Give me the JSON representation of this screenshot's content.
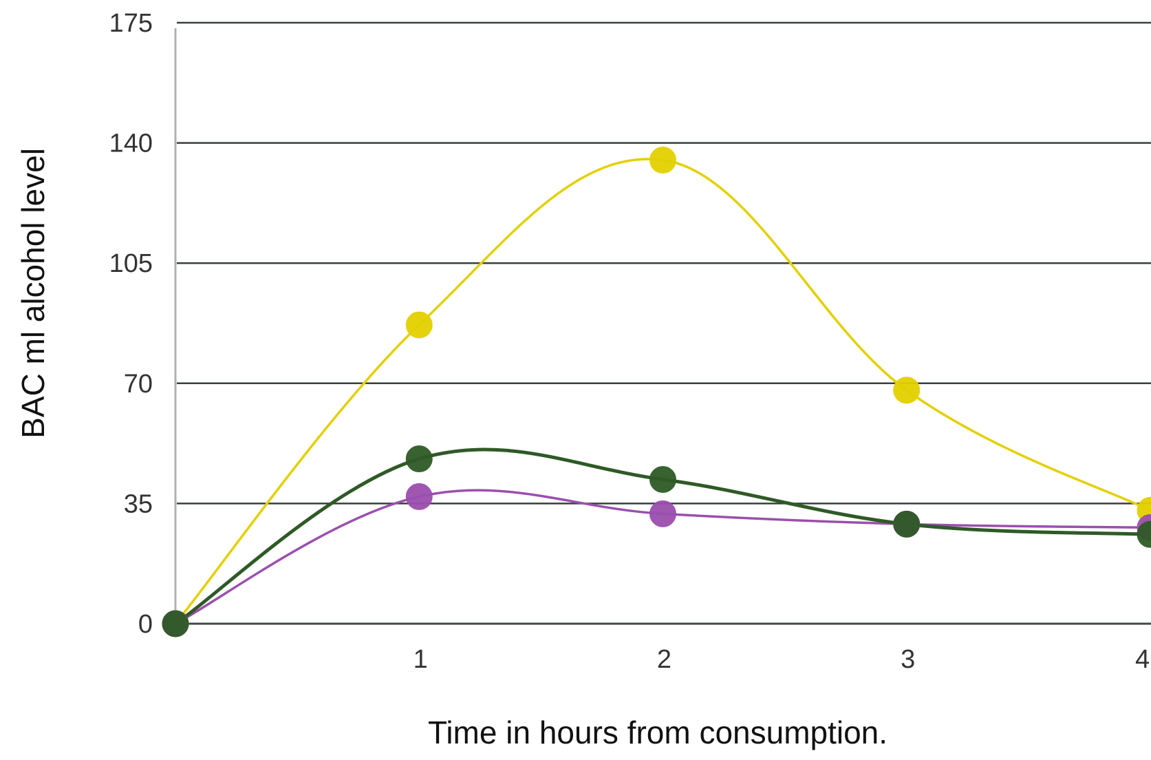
{
  "chart_data": {
    "type": "line",
    "title": "",
    "xlabel": "Time in hours from consumption.",
    "ylabel": "BAC ml alcohol level",
    "x": [
      0,
      1,
      2,
      3,
      4
    ],
    "x_tick_labels": [
      "1",
      "2",
      "3",
      "4"
    ],
    "y_ticks": [
      0,
      35,
      70,
      105,
      140,
      175
    ],
    "ylim": [
      0,
      175
    ],
    "xlim": [
      0,
      4
    ],
    "grid": true,
    "legend": "none",
    "series": [
      {
        "color": "#e3d000",
        "values": [
          0,
          87,
          135,
          68,
          33
        ]
      },
      {
        "color": "#2f5a26",
        "values": [
          0,
          48,
          42,
          29,
          26
        ]
      },
      {
        "color": "#9a4fae",
        "values": [
          0,
          37,
          32,
          29,
          28
        ]
      }
    ]
  }
}
